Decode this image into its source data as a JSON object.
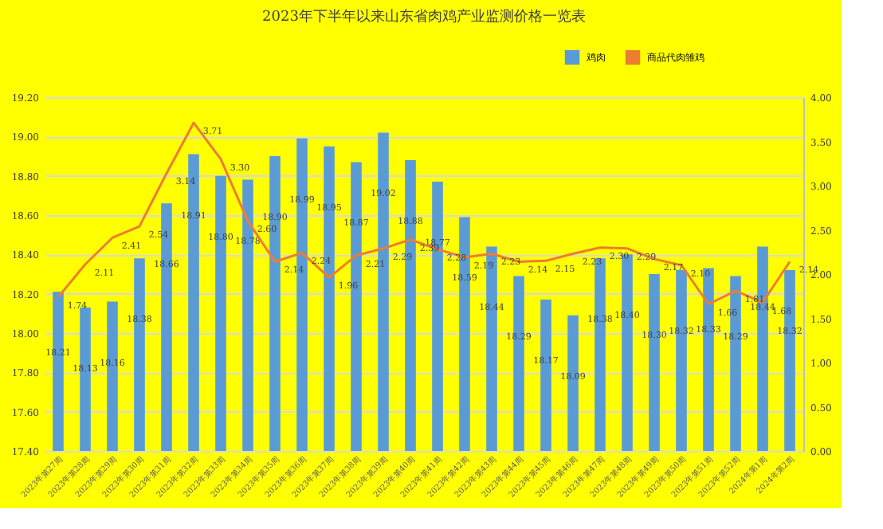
{
  "chart_data": {
    "type": "bar",
    "title": "2023年下半年以来山东省肉鸡产业监测价格一览表",
    "categories": [
      "2023年第27周",
      "2023年第28周",
      "2023年第29周",
      "2023年第30周",
      "2023年第31周",
      "2023年第32周",
      "2023年第33周",
      "2023年第34周",
      "2023年第35周",
      "2023年第36周",
      "2023年第37周",
      "2023年第38周",
      "2023年第39周",
      "2023年第40周",
      "2023年第41周",
      "2023年第42周",
      "2023年第43周",
      "2023年第44周",
      "2023年第45周",
      "2023年第46周",
      "2023年第47周",
      "2023年第48周",
      "2023年第49周",
      "2023年第50周",
      "2023年第51周",
      "2023年第52周",
      "2024年第1周",
      "2024年第2周"
    ],
    "series": [
      {
        "name": "鸡肉",
        "color": "#5b9bd5",
        "values": [
          18.21,
          18.13,
          18.16,
          18.38,
          18.66,
          18.91,
          18.8,
          18.78,
          18.9,
          18.99,
          18.95,
          18.87,
          19.02,
          18.88,
          18.77,
          18.59,
          18.44,
          18.29,
          18.17,
          18.09,
          18.38,
          18.4,
          18.3,
          18.32,
          18.33,
          18.29,
          18.44,
          18.32
        ],
        "value_labels": [
          "18.21",
          "18.13",
          "18.16",
          "18.38",
          "18.66",
          "18.91",
          "18.80",
          "18.78",
          "18.90",
          "18.99",
          "18.95",
          "18.87",
          "19.02",
          "18.88",
          "18.77",
          "18.59",
          "18.44",
          "18.29",
          "18.17",
          "18.09",
          "18.38",
          "18.40",
          "18.30",
          "18.32",
          "18.33",
          "18.29",
          "18.44",
          "18.32"
        ]
      },
      {
        "name": "商品代肉雏鸡",
        "type": "line",
        "axis": "y2",
        "color": "#ed7d31",
        "values": [
          1.74,
          2.11,
          2.41,
          2.54,
          3.14,
          3.71,
          3.3,
          2.6,
          2.14,
          2.24,
          1.96,
          2.21,
          2.29,
          2.39,
          2.28,
          2.19,
          2.23,
          2.14,
          2.15,
          2.23,
          2.3,
          2.29,
          2.17,
          2.1,
          1.66,
          1.81,
          1.68,
          2.14
        ],
        "value_labels": [
          "1.74",
          "2.11",
          "2.41",
          "2.54",
          "3.14",
          "3.71",
          "3.30",
          "2.60",
          "2.14",
          "2.24",
          "1.96",
          "2.21",
          "2.29",
          "2.39",
          "2.28",
          "2.19",
          "2.23",
          "2.14",
          "2.15",
          "2.23",
          "2.30",
          "2.29",
          "2.17",
          "2.10",
          "1.66",
          "1.81",
          "1.68",
          "2.14"
        ]
      }
    ],
    "ylim": [
      17.4,
      19.2
    ],
    "yticks": [
      {
        "value": 17.4,
        "label": "17.40"
      },
      {
        "value": 17.6,
        "label": "17.60"
      },
      {
        "value": 17.8,
        "label": "17.80"
      },
      {
        "value": 18.0,
        "label": "18.00"
      },
      {
        "value": 18.2,
        "label": "18.20"
      },
      {
        "value": 18.4,
        "label": "18.40"
      },
      {
        "value": 18.6,
        "label": "18.60"
      },
      {
        "value": 18.8,
        "label": "18.80"
      },
      {
        "value": 19.0,
        "label": "19.00"
      },
      {
        "value": 19.2,
        "label": "19.20"
      }
    ],
    "y2lim": [
      0,
      4
    ],
    "y2ticks": [
      {
        "value": 0,
        "label": "0.00"
      },
      {
        "value": 0.5,
        "label": "0.50"
      },
      {
        "value": 1,
        "label": "1.00"
      },
      {
        "value": 1.5,
        "label": "1.50"
      },
      {
        "value": 2,
        "label": "2.00"
      },
      {
        "value": 2.5,
        "label": "2.50"
      },
      {
        "value": 3,
        "label": "3.00"
      },
      {
        "value": 3.5,
        "label": "3.50"
      },
      {
        "value": 4,
        "label": "4.00"
      }
    ],
    "grid": "y",
    "legend": "top right",
    "marker": "none",
    "line_style": "solid"
  }
}
